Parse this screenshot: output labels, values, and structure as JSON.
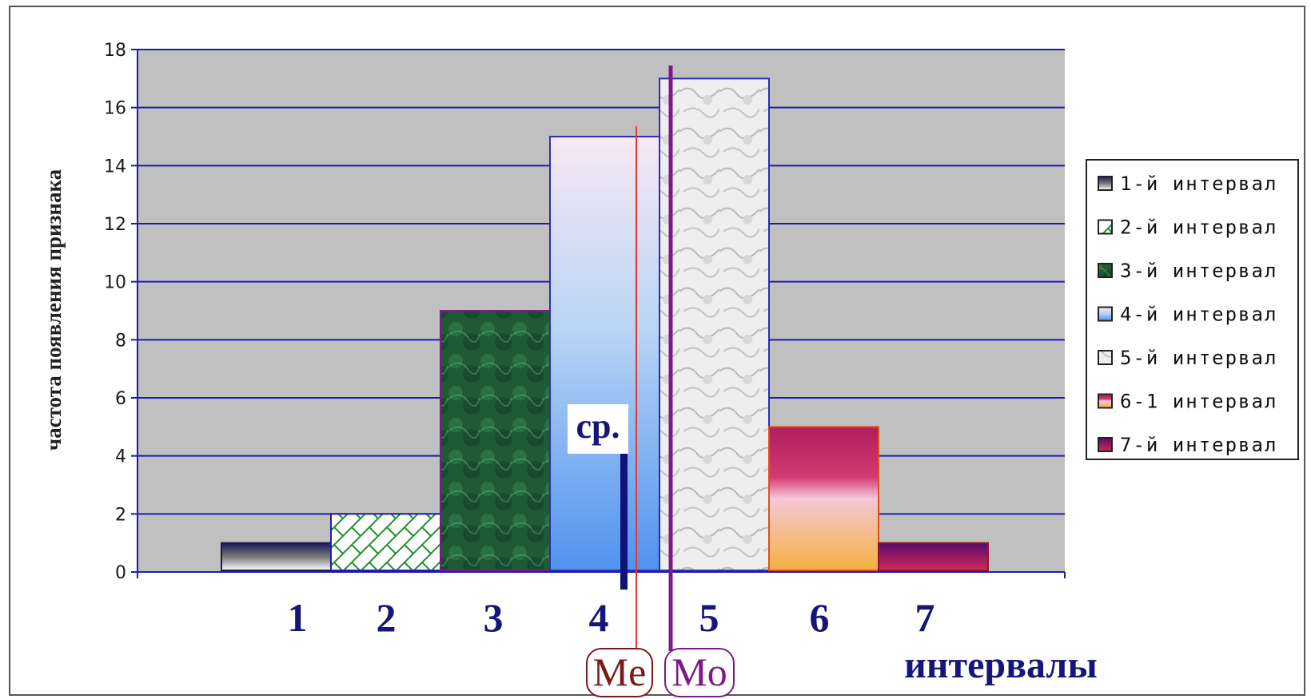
{
  "chart_data": {
    "type": "bar",
    "categories": [
      "1",
      "2",
      "3",
      "4",
      "5",
      "6",
      "7"
    ],
    "values": [
      1,
      2,
      9,
      15,
      17,
      5,
      1
    ],
    "ylabel": "частота появления признака",
    "xlabel": "интервалы",
    "ylim": [
      0,
      18
    ],
    "yticks": [
      0,
      2,
      4,
      6,
      8,
      10,
      12,
      14,
      16,
      18
    ],
    "grid": true,
    "legend_position": "right",
    "legend": [
      "1-й интервал",
      "2-й интервал",
      "3-й интервал",
      "4-й интервал",
      "5-й интервал",
      "6-1 интервал",
      "7-й интервал"
    ],
    "annotations": {
      "mean_label": "ср.",
      "median_label": "Me",
      "mode_label": "Mo"
    },
    "colors": {
      "plot_background": "#c0c0c0",
      "grid_line": "#1c1cb4",
      "axis": "#1c1cb4",
      "median_line": "#e23b2e",
      "mode_line": "#7a1a8a",
      "mean_bar": "#11117a",
      "label_color": "#15157a"
    }
  }
}
